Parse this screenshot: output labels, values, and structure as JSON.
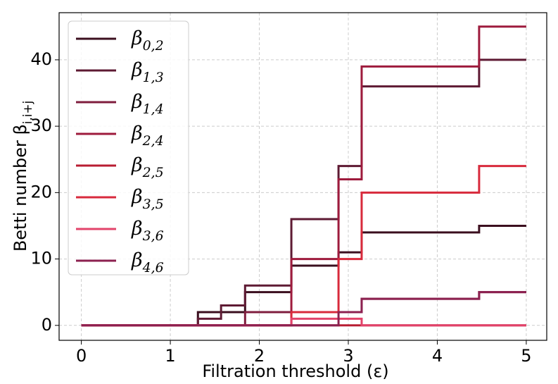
{
  "chart_data": {
    "type": "step",
    "x_label": "Filtration threshold (ε)",
    "y_label": "Betti number βi,i+j",
    "x": [
      0,
      1.31,
      1.57,
      1.84,
      2.36,
      2.89,
      3.15,
      4.47,
      5
    ],
    "series": [
      {
        "name": "β0,2",
        "color": "#3b0f1f",
        "values": [
          0,
          2,
          2,
          5,
          9,
          11,
          14,
          15,
          15
        ]
      },
      {
        "name": "β1,3",
        "color": "#5e1a33",
        "values": [
          0,
          1,
          3,
          6,
          16,
          24,
          36,
          40,
          40
        ]
      },
      {
        "name": "β1,4",
        "color": "#7f1d3e",
        "values": [
          0,
          0,
          0,
          2,
          2,
          2,
          4,
          5,
          5
        ]
      },
      {
        "name": "β2,4",
        "color": "#9e1b3d",
        "values": [
          0,
          0,
          0,
          0,
          10,
          22,
          39,
          45,
          45
        ]
      },
      {
        "name": "β2,5",
        "color": "#b81d32",
        "values": [
          0,
          0,
          0,
          0,
          0,
          0,
          0,
          0,
          0
        ]
      },
      {
        "name": "β3,5",
        "color": "#d82a3c",
        "values": [
          0,
          0,
          0,
          0,
          2,
          10,
          20,
          24,
          24
        ]
      },
      {
        "name": "β3,6",
        "color": "#e2436a",
        "values": [
          0,
          0,
          0,
          0,
          1,
          1,
          0,
          0,
          0
        ]
      },
      {
        "name": "β4,6",
        "color": "#8c2150",
        "values": [
          0,
          0,
          0,
          0,
          0,
          2,
          4,
          5,
          5
        ]
      }
    ],
    "xlim": [
      -0.25,
      5.23
    ],
    "ylim": [
      -2.25,
      47.1
    ],
    "xticks": [
      0,
      1,
      2,
      3,
      4,
      5
    ],
    "yticks": [
      0,
      10,
      20,
      30,
      40
    ],
    "grid": true,
    "legend": "upper left"
  }
}
